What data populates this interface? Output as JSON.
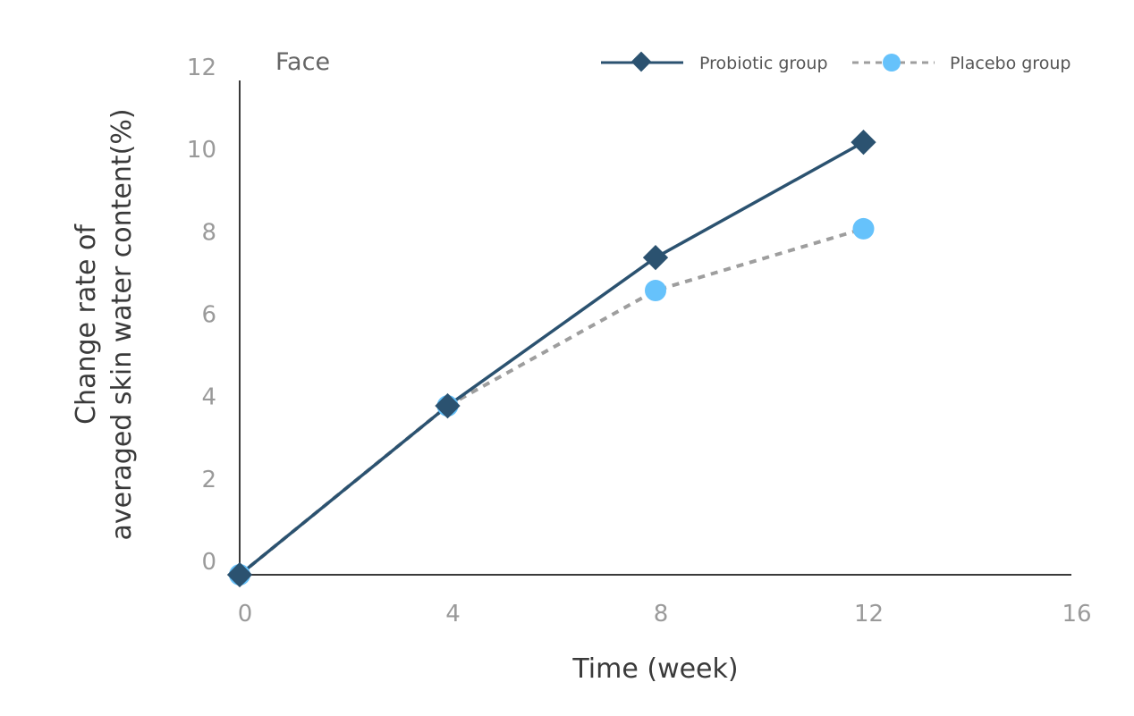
{
  "chart_data": {
    "type": "line",
    "title": "Face",
    "xlabel": "Time (week)",
    "ylabel_lines": [
      "Change rate of",
      "averaged skin water content(%)"
    ],
    "x": [
      0,
      4,
      8,
      12
    ],
    "xticks": [
      "0",
      "4",
      "8",
      "12",
      "16"
    ],
    "yticks": [
      "0",
      "2",
      "4",
      "6",
      "8",
      "10",
      "12"
    ],
    "xlim": [
      0,
      16
    ],
    "ylim": [
      0,
      12
    ],
    "grid": false,
    "legend_position": "top-right",
    "series": [
      {
        "name": "Probiotic group",
        "values": [
          0,
          4.1,
          7.7,
          10.5
        ],
        "color": "#2b5270",
        "line_style": "solid",
        "marker": "diamond"
      },
      {
        "name": "Placebo group",
        "values": [
          0,
          4.1,
          6.9,
          8.4
        ],
        "color": "#66c2fb",
        "line_color": "#9e9e9e",
        "line_style": "dashed",
        "marker": "circle"
      }
    ]
  }
}
